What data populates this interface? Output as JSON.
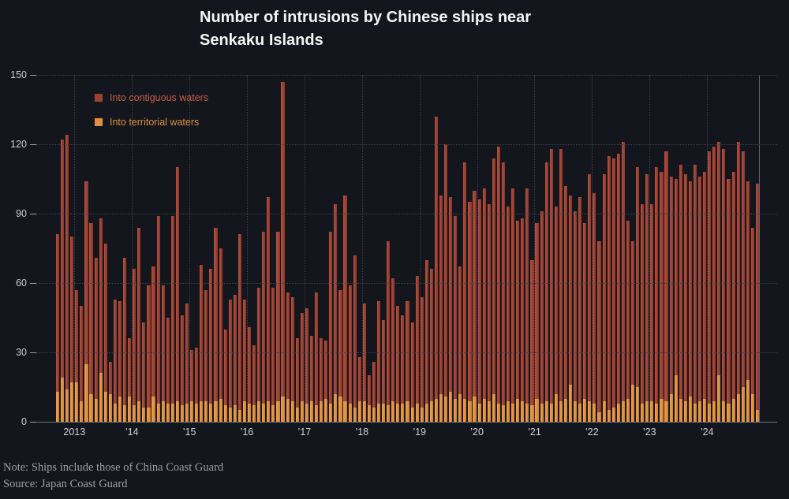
{
  "title_lines": [
    "Number of intrusions by Chinese ships near",
    "Senkaku Islands"
  ],
  "notes": {
    "note": "Note: Ships include those of China Coast Guard",
    "source": "Source: Japan Coast Guard"
  },
  "colors": {
    "background": "#14161d",
    "contiguous_bar": "#9d4130",
    "territorial_bar": "#e0913f",
    "grid": "#3d414c",
    "axis_text": "#c9ccd3"
  },
  "chart_data": {
    "type": "bar",
    "title": "Number of intrusions by Chinese ships near Senkaku Islands",
    "frequency": "monthly",
    "start": {
      "year": 2012,
      "month": 9
    },
    "x_tick_labels": [
      "2013",
      "’14",
      "’15",
      "’16",
      "’17",
      "’18",
      "’19",
      "’20",
      "’21",
      "’22",
      "’23",
      "’24"
    ],
    "ylim": [
      0,
      150
    ],
    "yticks": [
      0,
      30,
      60,
      90,
      120,
      150
    ],
    "grid": "dotted",
    "legend_position": "top-left",
    "series": [
      {
        "name": "Into contiguous waters",
        "color": "#9d4130",
        "label_color": "#c85c40",
        "values": [
          81,
          122,
          124,
          80,
          57,
          50,
          104,
          86,
          71,
          88,
          77,
          26,
          53,
          52,
          71,
          36,
          66,
          84,
          43,
          59,
          67,
          89,
          59,
          45,
          89,
          110,
          46,
          51,
          31,
          32,
          68,
          57,
          66,
          84,
          75,
          40,
          53,
          55,
          81,
          53,
          41,
          33,
          58,
          82,
          97,
          58,
          82,
          147,
          56,
          54,
          36,
          47,
          49,
          37,
          56,
          36,
          35,
          82,
          94,
          57,
          98,
          59,
          72,
          28,
          51,
          20,
          26,
          52,
          44,
          78,
          62,
          50,
          46,
          52,
          43,
          63,
          54,
          70,
          66,
          132,
          98,
          120,
          97,
          89,
          67,
          112,
          95,
          100,
          96,
          101,
          94,
          114,
          119,
          112,
          93,
          101,
          87,
          88,
          101,
          70,
          86,
          91,
          112,
          118,
          93,
          118,
          102,
          98,
          91,
          97,
          86,
          107,
          99,
          78,
          107,
          115,
          114,
          116,
          121,
          87,
          78,
          110,
          94,
          107,
          94,
          110,
          108,
          117,
          106,
          105,
          111,
          107,
          104,
          111,
          106,
          108,
          117,
          119,
          121,
          118,
          105,
          108,
          121,
          117,
          104,
          84,
          103
        ]
      },
      {
        "name": "Into territorial waters",
        "color": "#e0913f",
        "label_color": "#d9913f",
        "values": [
          13,
          19,
          14,
          17,
          17,
          9,
          25,
          12,
          10,
          21,
          13,
          12,
          8,
          11,
          7,
          11,
          7,
          9,
          6,
          6,
          11,
          8,
          9,
          8,
          8,
          9,
          7,
          8,
          9,
          8,
          9,
          9,
          8,
          9,
          10,
          7,
          6,
          7,
          5,
          9,
          8,
          7,
          9,
          8,
          9,
          7,
          9,
          11,
          10,
          9,
          6,
          9,
          8,
          9,
          7,
          9,
          10,
          8,
          12,
          11,
          9,
          8,
          6,
          9,
          9,
          7,
          6,
          8,
          8,
          7,
          9,
          8,
          8,
          9,
          6,
          8,
          6,
          8,
          9,
          10,
          12,
          11,
          13,
          10,
          12,
          10,
          9,
          11,
          8,
          10,
          9,
          12,
          8,
          7,
          9,
          8,
          10,
          9,
          8,
          7,
          10,
          8,
          9,
          8,
          12,
          9,
          10,
          16,
          9,
          8,
          10,
          9,
          8,
          4,
          9,
          5,
          6,
          8,
          9,
          10,
          16,
          15,
          8,
          9,
          9,
          8,
          10,
          9,
          12,
          20,
          10,
          9,
          11,
          8,
          9,
          10,
          8,
          9,
          20,
          9,
          8,
          10,
          12,
          15,
          18,
          12,
          5
        ]
      }
    ]
  }
}
